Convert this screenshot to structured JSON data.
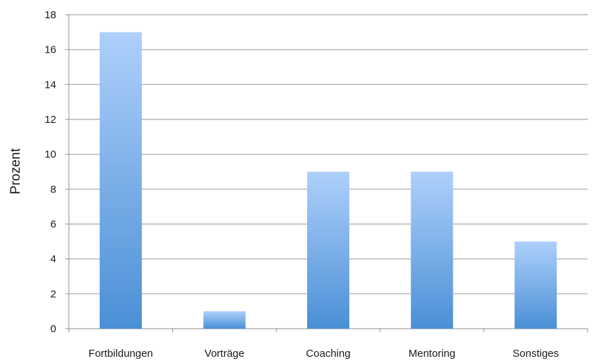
{
  "chart_data": {
    "type": "bar",
    "title": "",
    "xlabel": "",
    "ylabel": "Prozent",
    "categories": [
      "Fortbildungen",
      "Vorträge",
      "Coaching",
      "Mentoring",
      "Sonstiges"
    ],
    "values": [
      17,
      1,
      9,
      9,
      5
    ],
    "ylim": [
      0,
      18
    ],
    "yticks": [
      0,
      2,
      4,
      6,
      8,
      10,
      12,
      14,
      16,
      18
    ],
    "grid": true,
    "legend": "none",
    "colors": {
      "bar_top": "#aed0fb",
      "bar_bottom": "#4a8fd6",
      "grid": "#a6a6a6",
      "axis": "#8c8c8c",
      "text": "#1a1a1a"
    }
  }
}
